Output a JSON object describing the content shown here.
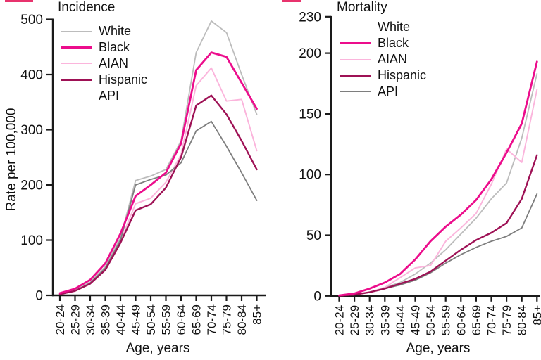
{
  "figure": {
    "background": "#ffffff",
    "text_color": "#111111",
    "axis_color": "#1a1a1a",
    "accent_pink": "#e8336d",
    "colors": {
      "White": "#bcbcbc",
      "Black": "#ec0d8c",
      "AIAN": "#fbb5dc",
      "Hispanic": "#9e1155",
      "API": "#7e7e7e"
    },
    "legend_labels": [
      "White",
      "Black",
      "AIAN",
      "Hispanic",
      "API"
    ]
  },
  "chart_data": [
    {
      "type": "line",
      "title": "Incidence",
      "xlabel": "Age, years",
      "ylabel": "Rate per 100,000",
      "ylim": [
        0,
        500
      ],
      "yticks": [
        0,
        100,
        200,
        300,
        400,
        500
      ],
      "grid": false,
      "legend_position": "upper-left",
      "categories": [
        "20-24",
        "25-29",
        "30-34",
        "35-39",
        "40-44",
        "45-49",
        "50-54",
        "55-59",
        "60-64",
        "65-69",
        "70-74",
        "75-79",
        "80-84",
        "85+"
      ],
      "series": [
        {
          "name": "White",
          "values": [
            2,
            9,
            24,
            52,
            104,
            208,
            216,
            228,
            280,
            440,
            497,
            476,
            400,
            328
          ]
        },
        {
          "name": "Black",
          "values": [
            4,
            12,
            28,
            58,
            112,
            180,
            200,
            222,
            275,
            408,
            440,
            432,
            385,
            338
          ]
        },
        {
          "name": "AIAN",
          "values": [
            2,
            8,
            22,
            48,
            98,
            166,
            176,
            205,
            255,
            380,
            412,
            352,
            355,
            262
          ]
        },
        {
          "name": "Hispanic",
          "values": [
            2,
            8,
            21,
            46,
            95,
            154,
            165,
            195,
            250,
            344,
            362,
            328,
            280,
            228
          ]
        },
        {
          "name": "API",
          "values": [
            2,
            8,
            22,
            49,
            100,
            200,
            210,
            218,
            240,
            298,
            315,
            270,
            222,
            172
          ]
        }
      ]
    },
    {
      "type": "line",
      "title": "Mortality",
      "xlabel": "Age, years",
      "ylabel": "Rate per 100,000",
      "ylim": [
        0,
        230
      ],
      "yticks": [
        0,
        50,
        100,
        150,
        200,
        230
      ],
      "grid": false,
      "legend_position": "upper-left",
      "categories": [
        "20-24",
        "25-29",
        "30-34",
        "35-39",
        "40-44",
        "45-49",
        "50-54",
        "55-59",
        "60-64",
        "65-69",
        "70-74",
        "75-79",
        "80-84",
        "85+"
      ],
      "series": [
        {
          "name": "White",
          "values": [
            0.2,
            1,
            3,
            7,
            11,
            18,
            27,
            38,
            51,
            64,
            80,
            93,
            130,
            183
          ]
        },
        {
          "name": "Black",
          "values": [
            0.4,
            2,
            6,
            11,
            18,
            30,
            45,
            57,
            67,
            79,
            96,
            118,
            142,
            193
          ]
        },
        {
          "name": "AIAN",
          "values": [
            0.2,
            1,
            3,
            7,
            15,
            23,
            25,
            45,
            56,
            68,
            92,
            121,
            110,
            170
          ]
        },
        {
          "name": "Hispanic",
          "values": [
            0.2,
            1,
            3,
            6,
            10,
            14,
            20,
            29,
            38,
            46,
            52,
            60,
            80,
            116
          ]
        },
        {
          "name": "API",
          "values": [
            0.2,
            1,
            3,
            6,
            9,
            13,
            19,
            27,
            34,
            40,
            45,
            49,
            56,
            84
          ]
        }
      ]
    }
  ]
}
